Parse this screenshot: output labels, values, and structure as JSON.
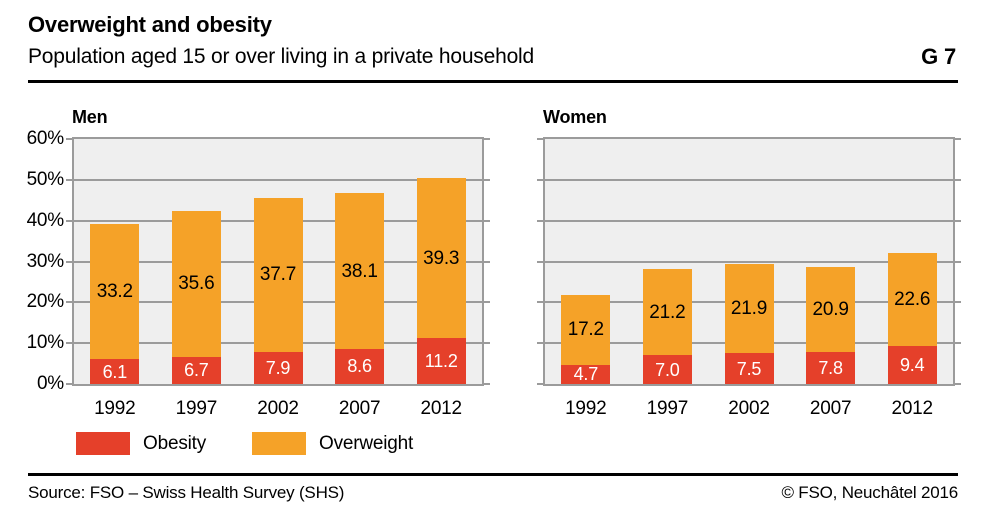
{
  "header": {
    "title": "Overweight and obesity",
    "subtitle": "Population aged 15 or over living in a private household",
    "figure_id": "G 7"
  },
  "colors": {
    "obesity": "#e5402a",
    "overweight": "#f5a228",
    "plot_background": "#efefef",
    "gridline": "#9b9b9b",
    "rule": "#000000"
  },
  "legend": {
    "position": "bottom-left",
    "items": [
      {
        "label": "Obesity",
        "color": "#e5402a"
      },
      {
        "label": "Overweight",
        "color": "#f5a228"
      }
    ]
  },
  "chart_data": [
    {
      "type": "bar",
      "stacked": true,
      "title": "Men",
      "categories": [
        "1992",
        "1997",
        "2002",
        "2007",
        "2012"
      ],
      "series": [
        {
          "name": "Obesity",
          "color": "#e5402a",
          "values": [
            6.1,
            6.7,
            7.9,
            8.6,
            11.2
          ]
        },
        {
          "name": "Overweight",
          "color": "#f5a228",
          "values": [
            33.2,
            35.6,
            37.7,
            38.1,
            39.3
          ]
        }
      ],
      "ylim": [
        0,
        60
      ],
      "ytick_step": 10,
      "yticklabels": [
        "0%",
        "10%",
        "20%",
        "30%",
        "40%",
        "50%",
        "60%"
      ],
      "show_y_labels": true,
      "grid": true
    },
    {
      "type": "bar",
      "stacked": true,
      "title": "Women",
      "categories": [
        "1992",
        "1997",
        "2002",
        "2007",
        "2012"
      ],
      "series": [
        {
          "name": "Obesity",
          "color": "#e5402a",
          "values": [
            4.7,
            7.0,
            7.5,
            7.8,
            9.4
          ]
        },
        {
          "name": "Overweight",
          "color": "#f5a228",
          "values": [
            17.2,
            21.2,
            21.9,
            20.9,
            22.6
          ]
        }
      ],
      "ylim": [
        0,
        60
      ],
      "ytick_step": 10,
      "yticklabels": [
        "0%",
        "10%",
        "20%",
        "30%",
        "40%",
        "50%",
        "60%"
      ],
      "show_y_labels": false,
      "grid": true
    }
  ],
  "footer": {
    "source": "Source: FSO – Swiss Health Survey (SHS)",
    "copyright": "© FSO, Neuchâtel 2016"
  }
}
